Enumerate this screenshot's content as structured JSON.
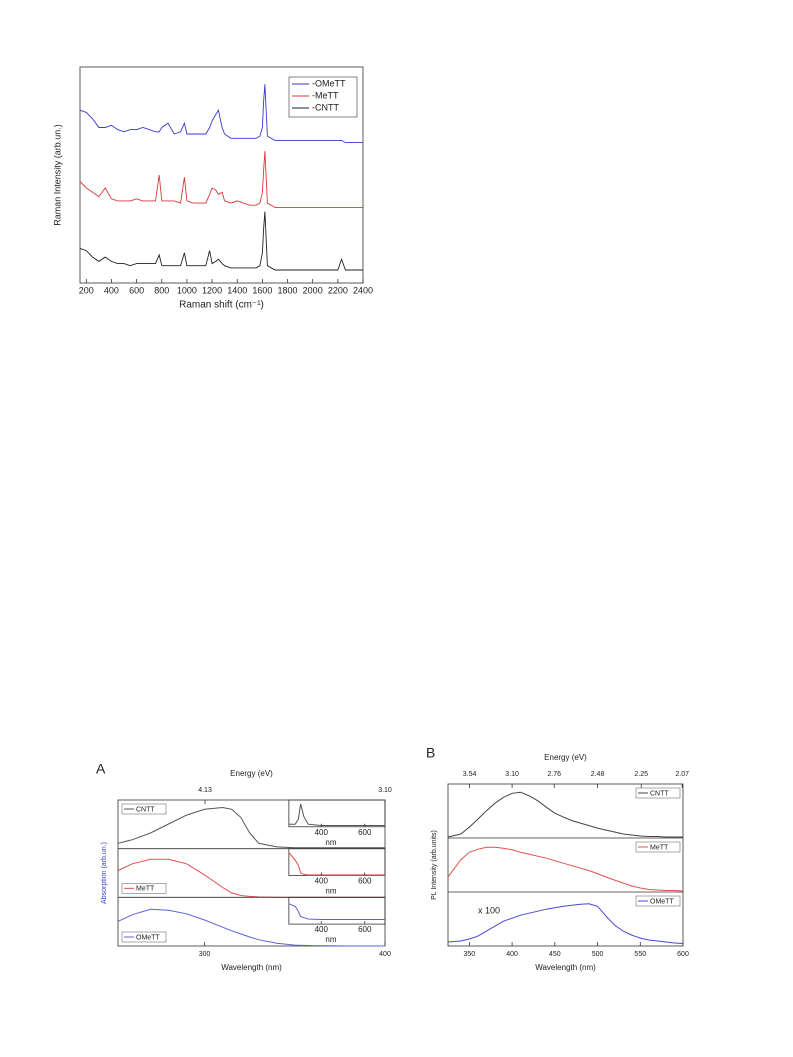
{
  "chart_data": [
    {
      "type": "line",
      "xlabel": "Raman shift (cm⁻¹)",
      "ylabel": "Raman Intensity (arb.un.)",
      "xlim": [
        150,
        2400
      ],
      "ylim": [
        0,
        100
      ],
      "xticks": [
        200,
        400,
        600,
        800,
        1000,
        1200,
        1400,
        1600,
        1800,
        2000,
        2200,
        2400
      ],
      "legend": "upper right",
      "grid": false,
      "x": [
        150,
        200,
        250,
        300,
        350,
        400,
        450,
        500,
        550,
        600,
        650,
        700,
        750,
        780,
        800,
        850,
        900,
        950,
        980,
        1000,
        1050,
        1100,
        1150,
        1180,
        1200,
        1230,
        1250,
        1280,
        1300,
        1350,
        1400,
        1450,
        1500,
        1550,
        1580,
        1600,
        1610,
        1620,
        1640,
        1700,
        1800,
        1900,
        2000,
        2100,
        2200,
        2230,
        2260,
        2300,
        2400
      ],
      "series": [
        {
          "name": "-OMeTT",
          "color": "#3a3acd",
          "values": [
            80,
            79,
            76,
            72,
            72,
            73,
            71,
            70,
            71,
            71,
            72,
            71,
            70,
            70,
            72,
            74,
            69,
            70,
            74,
            69,
            69,
            69,
            69,
            72,
            75,
            78,
            80,
            72,
            69,
            67,
            67,
            67,
            67,
            67,
            68,
            72,
            84,
            92,
            68,
            66,
            66,
            66,
            66,
            66,
            66,
            66,
            65,
            65,
            65
          ]
        },
        {
          "name": "-MeTT",
          "color": "#d83a3a",
          "values": [
            47,
            44,
            42,
            40,
            44,
            39,
            38,
            38,
            38,
            39,
            38,
            38,
            38,
            50,
            38,
            38,
            38,
            37,
            49,
            38,
            37,
            37,
            37,
            41,
            44,
            43,
            41,
            42,
            38,
            37,
            38,
            37,
            36,
            36,
            37,
            42,
            52,
            61,
            37,
            35,
            35,
            35,
            35,
            35,
            35,
            35,
            35,
            35,
            35
          ]
        },
        {
          "name": "-CNTT",
          "color": "#222222",
          "values": [
            16,
            15,
            12,
            10,
            12,
            10,
            9,
            9,
            8,
            9,
            9,
            9,
            9,
            13,
            8,
            8,
            8,
            8,
            14,
            8,
            8,
            8,
            8,
            15,
            9,
            10,
            11,
            9,
            8,
            7,
            7,
            7,
            7,
            7,
            8,
            14,
            25,
            33,
            8,
            6,
            6,
            6,
            6,
            6,
            6,
            11,
            6,
            6,
            6
          ]
        }
      ]
    },
    {
      "type": "panels",
      "panel_label": "A",
      "xlabel": "Wavelength (nm)",
      "ylabel": "Absorption (arb.un.)",
      "ylabel_color": "#3b3bd6",
      "x2label": "Energy (eV)",
      "x2ticks": [
        4.13,
        {
          "value": 3.1,
          "label": "3.10"
        }
      ],
      "xlim": [
        252,
        400
      ],
      "ylim": [
        0,
        1
      ],
      "xticks": [
        300,
        400
      ],
      "x": [
        252,
        260,
        270,
        280,
        290,
        300,
        310,
        315,
        320,
        325,
        330,
        340,
        350,
        360,
        380,
        400
      ],
      "inset_xlim": [
        251,
        693
      ],
      "inset_xticks": [
        400,
        600
      ],
      "inset_xlabel": "nm",
      "inset_x": [
        251,
        280,
        295,
        305,
        320,
        340,
        400,
        500,
        693
      ],
      "series": [
        {
          "name": "CNTT",
          "color": "#555555",
          "legend": "upper left",
          "values": [
            0.12,
            0.2,
            0.35,
            0.55,
            0.75,
            0.88,
            0.92,
            0.88,
            0.7,
            0.35,
            0.12,
            0.04,
            0.02,
            0.02,
            0.02,
            0.02
          ],
          "inset_values": [
            0.1,
            0.1,
            0.3,
            0.9,
            0.4,
            0.1,
            0.05,
            0.05,
            0.05
          ]
        },
        {
          "name": "MeTT",
          "color": "#e05050",
          "legend": "lower left",
          "values": [
            0.6,
            0.75,
            0.85,
            0.85,
            0.75,
            0.5,
            0.22,
            0.1,
            0.04,
            0.02,
            0.01,
            0,
            0,
            0,
            0,
            0
          ],
          "inset_values": [
            0.9,
            0.6,
            0.4,
            0.1,
            0.04,
            0.02,
            0.02,
            0.02,
            0.02
          ]
        },
        {
          "name": "OMeTT",
          "color": "#6060d8",
          "legend": "lower left",
          "values": [
            0.55,
            0.7,
            0.82,
            0.8,
            0.72,
            0.58,
            0.42,
            0.34,
            0.27,
            0.2,
            0.14,
            0.06,
            0.02,
            0.01,
            0,
            0
          ],
          "inset_values": [
            0.8,
            0.7,
            0.5,
            0.3,
            0.25,
            0.2,
            0.18,
            0.18,
            0.18
          ]
        }
      ]
    },
    {
      "type": "panels",
      "panel_label": "B",
      "xlabel": "Wavelength (nm)",
      "ylabel": "PL Intensity (arb.units)",
      "x2label": "Energy (eV)",
      "x2ticks": [
        3.54,
        {
          "value": 3.1,
          "label": "3.10"
        },
        2.76,
        2.48,
        2.25,
        2.07
      ],
      "xlim": [
        325,
        600
      ],
      "ylim": [
        0,
        1
      ],
      "xticks": [
        350,
        400,
        450,
        500,
        550,
        600
      ],
      "annotation": "x 100",
      "x": [
        325,
        340,
        350,
        360,
        370,
        380,
        390,
        400,
        410,
        420,
        430,
        440,
        450,
        460,
        470,
        480,
        490,
        500,
        510,
        520,
        530,
        540,
        550,
        560,
        570,
        580,
        590,
        600
      ],
      "series": [
        {
          "name": "CNTT",
          "color": "#444444",
          "legend": "upper right",
          "values": [
            0.02,
            0.08,
            0.22,
            0.38,
            0.55,
            0.7,
            0.82,
            0.9,
            0.92,
            0.85,
            0.75,
            0.62,
            0.5,
            0.42,
            0.35,
            0.3,
            0.25,
            0.2,
            0.16,
            0.12,
            0.08,
            0.06,
            0.04,
            0.03,
            0.03,
            0.02,
            0.02,
            0.02
          ]
        },
        {
          "name": "MeTT",
          "color": "#e05050",
          "legend": "upper right",
          "values": [
            0.3,
            0.65,
            0.8,
            0.86,
            0.9,
            0.9,
            0.88,
            0.85,
            0.8,
            0.76,
            0.72,
            0.68,
            0.63,
            0.58,
            0.53,
            0.48,
            0.43,
            0.37,
            0.3,
            0.24,
            0.18,
            0.12,
            0.08,
            0.05,
            0.04,
            0.03,
            0.03,
            0.02
          ]
        },
        {
          "name": "OMeTT",
          "color": "#4848cc",
          "legend": "upper right",
          "values": [
            0.08,
            0.1,
            0.14,
            0.2,
            0.3,
            0.4,
            0.5,
            0.56,
            0.62,
            0.66,
            0.7,
            0.74,
            0.77,
            0.8,
            0.82,
            0.84,
            0.85,
            0.8,
            0.6,
            0.42,
            0.3,
            0.22,
            0.16,
            0.12,
            0.1,
            0.08,
            0.06,
            0.05
          ]
        }
      ]
    }
  ]
}
